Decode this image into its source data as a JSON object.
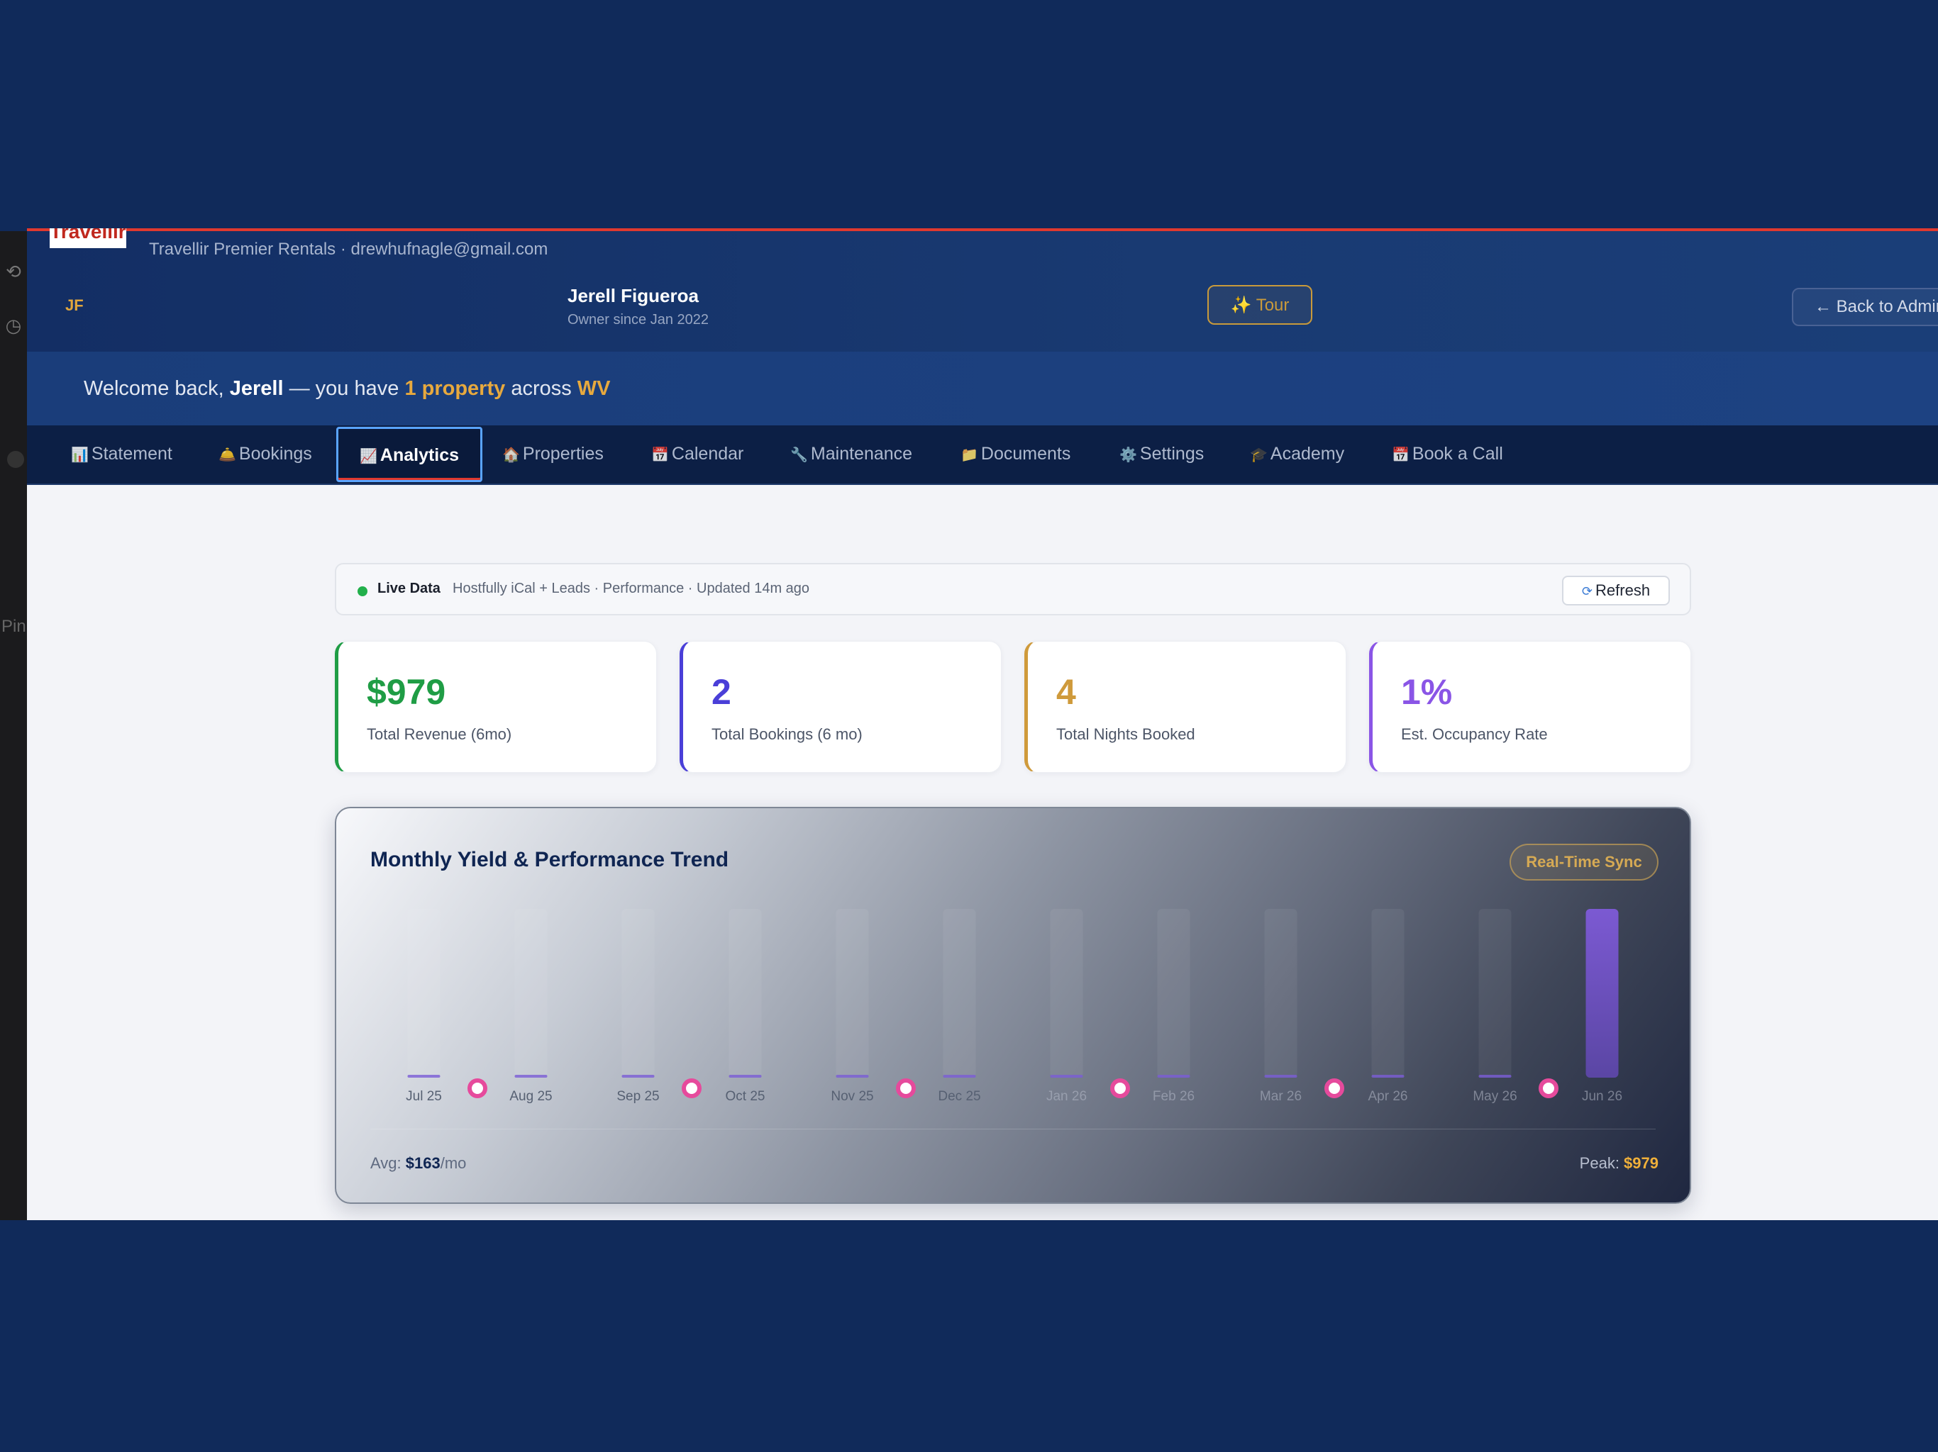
{
  "header": {
    "logo_text": "Travellir",
    "company_line": "Travellir Premier Rentals · drewhufnagle@gmail.com",
    "avatar_initials": "JF",
    "owner_name": "Jerell Figueroa",
    "owner_since": "Owner since Jan 2022",
    "tour_label": "✨ Tour",
    "back_label": "← Back to Admin"
  },
  "welcome": {
    "prefix": "Welcome back, ",
    "name": "Jerell",
    "mid": " — you have ",
    "property_count": "1 property",
    "across": " across ",
    "region": "WV"
  },
  "tabs": [
    {
      "icon": "📊",
      "label": "Statement"
    },
    {
      "icon": "🛎️",
      "label": "Bookings"
    },
    {
      "icon": "📈",
      "label": "Analytics"
    },
    {
      "icon": "🏠",
      "label": "Properties"
    },
    {
      "icon": "📅",
      "label": "Calendar"
    },
    {
      "icon": "🔧",
      "label": "Maintenance"
    },
    {
      "icon": "📁",
      "label": "Documents"
    },
    {
      "icon": "⚙️",
      "label": "Settings"
    },
    {
      "icon": "🎓",
      "label": "Academy"
    },
    {
      "icon": "📅",
      "label": "Book a Call"
    }
  ],
  "active_tab": "Analytics",
  "live": {
    "label": "Live Data",
    "description": "Hostfully iCal + Leads · Performance · Updated 14m ago",
    "refresh_label": "Refresh"
  },
  "stats": [
    {
      "value": "$979",
      "label": "Total Revenue (6mo)",
      "color": "#1f9d45"
    },
    {
      "value": "2",
      "label": "Total Bookings (6 mo)",
      "color": "#4a3fd8"
    },
    {
      "value": "4",
      "label": "Total Nights Booked",
      "color": "#cf9a3b"
    },
    {
      "value": "1%",
      "label": "Est. Occupancy Rate",
      "color": "#8a55e6"
    }
  ],
  "chart": {
    "title": "Monthly Yield & Performance Trend",
    "badge": "Real-Time Sync",
    "avg_label": "Avg: ",
    "avg_value": "$163",
    "avg_suffix": "/mo",
    "peak_label": "Peak: ",
    "peak_value": "$979"
  },
  "chart_data": {
    "type": "bar",
    "title": "Monthly Yield & Performance Trend",
    "categories": [
      "Jul 25",
      "Aug 25",
      "Sep 25",
      "Oct 25",
      "Nov 25",
      "Dec 25",
      "Jan 26",
      "Feb 26",
      "Mar 26",
      "Apr 26",
      "May 26",
      "Jun 26"
    ],
    "values": [
      0,
      0,
      0,
      0,
      0,
      0,
      0,
      0,
      0,
      0,
      0,
      979
    ],
    "ylim": [
      0,
      979
    ],
    "colors": {
      "bar": "#7b5cd6",
      "trend_line": "#e04a9a"
    }
  }
}
